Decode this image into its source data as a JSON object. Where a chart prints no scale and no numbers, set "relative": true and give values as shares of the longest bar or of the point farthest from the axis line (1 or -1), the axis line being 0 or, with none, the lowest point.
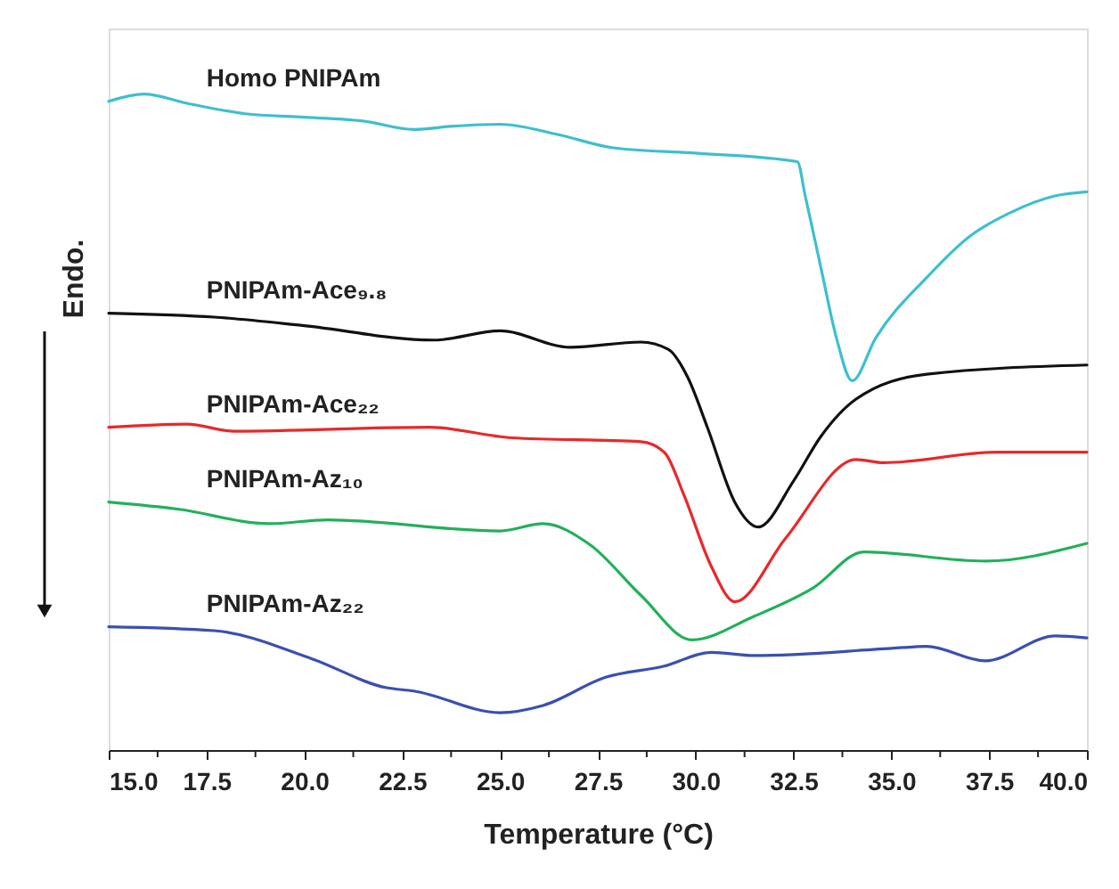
{
  "chart_data": {
    "type": "line",
    "relative": true,
    "xlabel": "Temperature (°C)",
    "ylabel": "Endo.",
    "xlim": [
      15,
      40
    ],
    "xticks": [
      {
        "value": 15,
        "label": "15.0"
      },
      {
        "value": 16.25,
        "label": null
      },
      {
        "value": 17.5,
        "label": "17.5"
      },
      {
        "value": 18.75,
        "label": null
      },
      {
        "value": 20,
        "label": "20.0"
      },
      {
        "value": 21.25,
        "label": null
      },
      {
        "value": 22.5,
        "label": "22.5"
      },
      {
        "value": 23.75,
        "label": null
      },
      {
        "value": 25,
        "label": "25.0"
      },
      {
        "value": 26.25,
        "label": null
      },
      {
        "value": 27.5,
        "label": "27.5"
      },
      {
        "value": 28.75,
        "label": null
      },
      {
        "value": 30,
        "label": "30.0"
      },
      {
        "value": 31.25,
        "label": null
      },
      {
        "value": 32.5,
        "label": "32.5"
      },
      {
        "value": 33.75,
        "label": null
      },
      {
        "value": 35,
        "label": "35.0"
      },
      {
        "value": 36.25,
        "label": null
      },
      {
        "value": 37.5,
        "label": "37.5"
      },
      {
        "value": 38.75,
        "label": null
      },
      {
        "value": 40,
        "label": "40.0"
      }
    ],
    "grid": false,
    "marker": "none",
    "line_style": "solid",
    "series": [
      {
        "name": "Homo PNIPAm",
        "color": "#3dbfcf",
        "x": [
          15.0,
          15.9,
          17.0,
          18.5,
          19.9,
          21.5,
          22.8,
          23.8,
          25.0,
          26.5,
          27.9,
          30.0,
          32.6,
          32.8,
          33.2,
          33.6,
          34.0,
          34.6,
          35.9,
          37.0,
          38.0,
          39.2,
          40.0
        ],
        "values": [
          0.989,
          1.0,
          0.986,
          0.97,
          0.965,
          0.959,
          0.946,
          0.951,
          0.954,
          0.938,
          0.918,
          0.91,
          0.897,
          0.845,
          0.736,
          0.628,
          0.563,
          0.628,
          0.72,
          0.783,
          0.818,
          0.845,
          0.851
        ]
      },
      {
        "name": "PNIPAm-Ace₉.₈",
        "color": "#111111",
        "x": [
          15.0,
          17.7,
          20.0,
          23.3,
          25.0,
          26.8,
          28.6,
          29.3,
          29.8,
          30.3,
          31.0,
          31.6,
          32.5,
          33.2,
          34.1,
          35.9,
          40.0
        ],
        "values": [
          0.666,
          0.66,
          0.647,
          0.625,
          0.639,
          0.614,
          0.622,
          0.611,
          0.568,
          0.492,
          0.378,
          0.34,
          0.41,
          0.478,
          0.535,
          0.573,
          0.587
        ]
      },
      {
        "name": "PNIPAm-Ace₂₂",
        "color": "#e8282a",
        "x": [
          15.0,
          17.0,
          18.2,
          23.2,
          25.3,
          28.6,
          29.2,
          29.7,
          30.4,
          31.0,
          32.3,
          34.1,
          34.8,
          37.7,
          40.0
        ],
        "values": [
          0.492,
          0.497,
          0.486,
          0.492,
          0.476,
          0.47,
          0.454,
          0.389,
          0.28,
          0.226,
          0.323,
          0.443,
          0.438,
          0.454,
          0.454
        ]
      },
      {
        "name": "PNIPAm-Az₁₀",
        "color": "#22b05a",
        "x": [
          15.0,
          16.8,
          19.1,
          20.6,
          25.0,
          26.1,
          27.3,
          28.6,
          29.9,
          31.5,
          33.0,
          34.3,
          37.4,
          40.0
        ],
        "values": [
          0.378,
          0.367,
          0.345,
          0.351,
          0.334,
          0.345,
          0.313,
          0.236,
          0.168,
          0.204,
          0.247,
          0.302,
          0.288,
          0.315
        ]
      },
      {
        "name": "PNIPAm-Az₂₂",
        "color": "#3a4fb0",
        "x": [
          15.0,
          17.7,
          20.2,
          22.1,
          22.8,
          25.0,
          26.1,
          27.7,
          29.2,
          30.4,
          31.5,
          35.0,
          35.9,
          37.4,
          39.2,
          40.0
        ],
        "values": [
          0.188,
          0.182,
          0.139,
          0.095,
          0.09,
          0.057,
          0.068,
          0.111,
          0.128,
          0.149,
          0.144,
          0.155,
          0.158,
          0.136,
          0.174,
          0.171
        ]
      }
    ]
  }
}
